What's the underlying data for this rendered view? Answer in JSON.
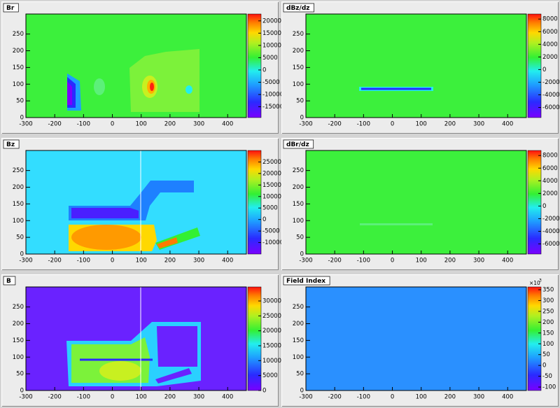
{
  "chart_data": [
    {
      "type": "heatmap",
      "title": "Br",
      "color": "#3cf03c",
      "xlim": [
        -300,
        465
      ],
      "xticks": [
        -300,
        -200,
        -100,
        0,
        100,
        200,
        300,
        400
      ],
      "ylim": [
        0,
        310
      ],
      "yticks": [
        0,
        50,
        100,
        150,
        200,
        250
      ],
      "zlim": [
        -19400,
        22800
      ],
      "zticks": [
        20000,
        15000,
        10000,
        5000,
        0,
        -5000,
        -10000,
        -15000
      ]
    },
    {
      "type": "heatmap",
      "title": "dBz/dz",
      "color": "#3cf03c",
      "xlim": [
        -300,
        465
      ],
      "xticks": [
        -300,
        -200,
        -100,
        0,
        100,
        200,
        300,
        400
      ],
      "ylim": [
        0,
        310
      ],
      "yticks": [
        0,
        50,
        100,
        150,
        200,
        250
      ],
      "zlim": [
        -7600,
        8800
      ],
      "zticks": [
        8000,
        6000,
        4000,
        2000,
        0,
        -2000,
        -4000,
        -6000
      ]
    },
    {
      "type": "heatmap",
      "title": "Bz",
      "color": "#33ddff",
      "xlim": [
        -300,
        465
      ],
      "xticks": [
        -300,
        -200,
        -100,
        0,
        100,
        200,
        300,
        400
      ],
      "ylim": [
        0,
        310
      ],
      "yticks": [
        0,
        50,
        100,
        150,
        200,
        250
      ],
      "zlim": [
        -15000,
        30000
      ],
      "zticks": [
        25000,
        20000,
        15000,
        10000,
        5000,
        0,
        -5000,
        -10000
      ]
    },
    {
      "type": "heatmap",
      "title": "dBr/dz",
      "color": "#3cf03c",
      "xlim": [
        -300,
        465
      ],
      "xticks": [
        -300,
        -200,
        -100,
        0,
        100,
        200,
        300,
        400
      ],
      "ylim": [
        0,
        310
      ],
      "yticks": [
        0,
        50,
        100,
        150,
        200,
        250
      ],
      "zlim": [
        -7600,
        8800
      ],
      "zticks": [
        8000,
        6000,
        4000,
        2000,
        0,
        -2000,
        -4000,
        -6000
      ]
    },
    {
      "type": "heatmap",
      "title": "B",
      "color": "#6a22ff",
      "xlim": [
        -300,
        465
      ],
      "xticks": [
        -300,
        -200,
        -100,
        0,
        100,
        200,
        300,
        400
      ],
      "ylim": [
        0,
        310
      ],
      "yticks": [
        0,
        50,
        100,
        150,
        200,
        250
      ],
      "zlim": [
        0,
        34700
      ],
      "zticks": [
        30000,
        25000,
        20000,
        15000,
        10000,
        5000,
        0
      ]
    },
    {
      "type": "heatmap",
      "title": "Field Index",
      "color": "#2a90ff",
      "multiplier": "×10",
      "multiplier_exp": "3",
      "xlim": [
        -300,
        465
      ],
      "xticks": [
        -300,
        -200,
        -100,
        0,
        100,
        200,
        300,
        400
      ],
      "ylim": [
        0,
        310
      ],
      "yticks": [
        0,
        50,
        100,
        150,
        200,
        250
      ],
      "zlim": [
        -116,
        363
      ],
      "zticks": [
        350,
        300,
        250,
        200,
        150,
        100,
        50,
        0,
        -50,
        -100
      ]
    }
  ]
}
